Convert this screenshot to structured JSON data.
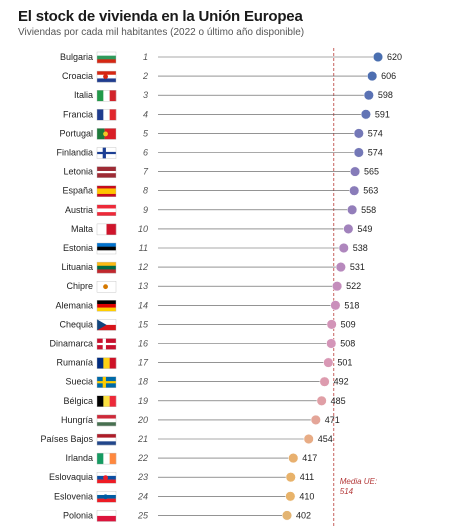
{
  "header": {
    "title": "El stock de vivienda en la Unión Europea",
    "subtitle": "Viviendas por cada mil habitantes (2022 o último año disponible)"
  },
  "chart_data": {
    "type": "scatter",
    "title": "El stock de vivienda en la Unión Europea",
    "subtitle": "Viviendas por cada mil habitantes (2022 o último año disponible)",
    "categories": [
      "Bulgaria",
      "Croacia",
      "Italia",
      "Francia",
      "Portugal",
      "Finlandia",
      "Letonia",
      "España",
      "Austria",
      "Malta",
      "Estonia",
      "Lituania",
      "Chipre",
      "Alemania",
      "Chequia",
      "Dinamarca",
      "Rumanía",
      "Suecia",
      "Bélgica",
      "Hungría",
      "Países Bajos",
      "Irlanda",
      "Eslovaquia",
      "Eslovenia",
      "Polonia"
    ],
    "ranks": [
      "1",
      "2",
      "3",
      "4",
      "5",
      "6",
      "7",
      "8",
      "9",
      "10",
      "11",
      "12",
      "13",
      "14",
      "15",
      "16",
      "17",
      "18",
      "19",
      "20",
      "21",
      "22",
      "23",
      "24",
      "25"
    ],
    "values": [
      620,
      606,
      598,
      591,
      574,
      574,
      565,
      563,
      558,
      549,
      538,
      531,
      522,
      518,
      509,
      508,
      501,
      492,
      485,
      471,
      454,
      417,
      411,
      410,
      402
    ],
    "point_colors": [
      "#4a6fb0",
      "#4d6eb1",
      "#5a72b4",
      "#6274b5",
      "#7478b7",
      "#7478b7",
      "#857bb9",
      "#8a7cb9",
      "#937eba",
      "#a182bc",
      "#ae86bd",
      "#b889bd",
      "#c48dbc",
      "#ca8fbb",
      "#d394b8",
      "#d495b8",
      "#d998b5",
      "#dd9bae",
      "#e09fa6",
      "#e4a598",
      "#e8ac85",
      "#e8b06f",
      "#e8b26a",
      "#e8b36a",
      "#e3b472"
    ],
    "reference_line": {
      "value": 514,
      "label_line1": "Media UE:",
      "label_line2": "514"
    },
    "xlim": [
      350,
      640
    ]
  }
}
